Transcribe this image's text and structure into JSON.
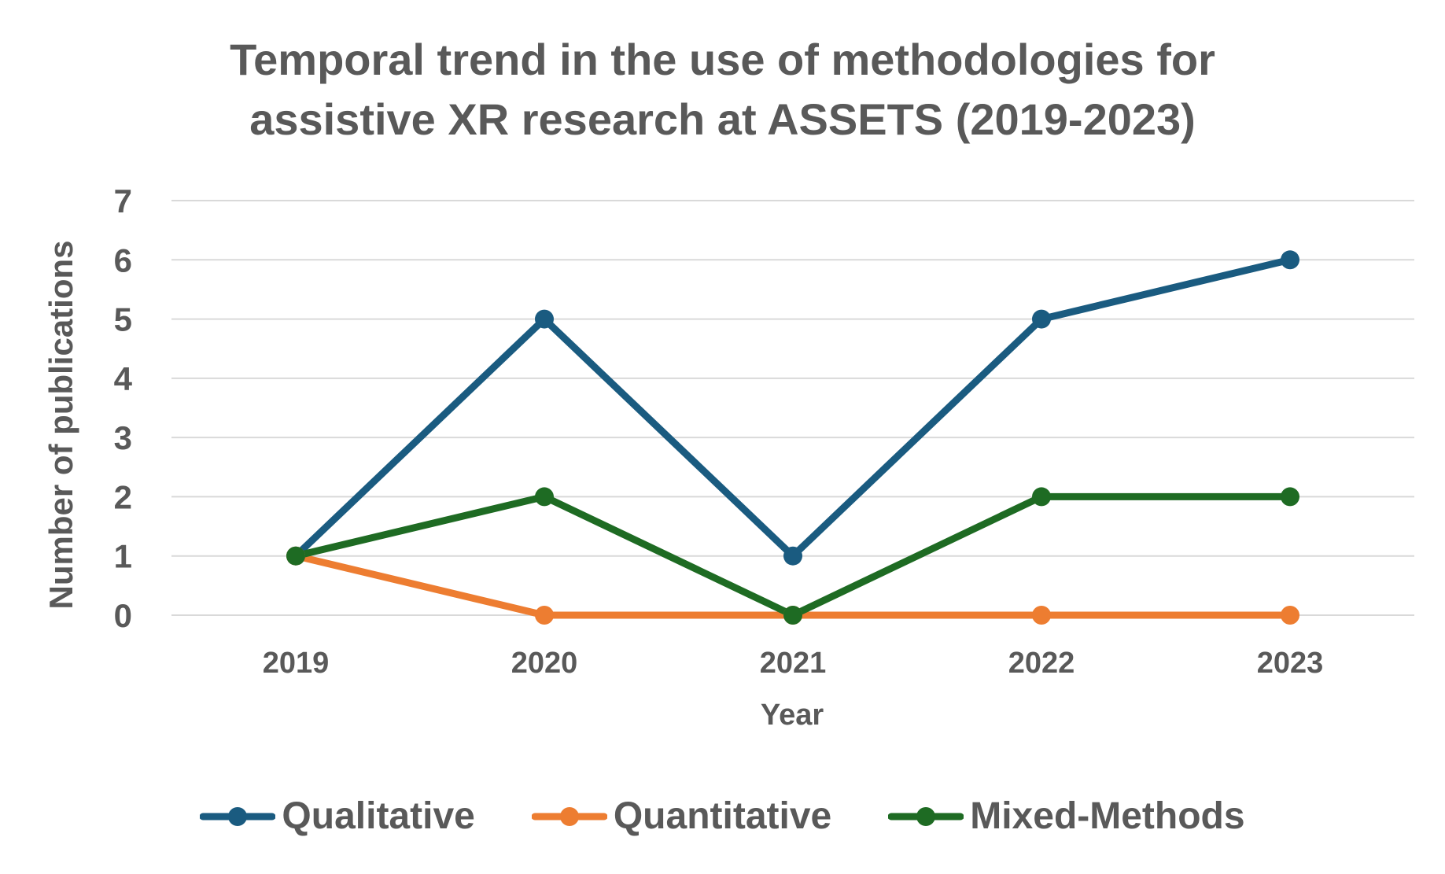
{
  "chart_data": {
    "type": "line",
    "title_lines": [
      "Temporal trend in the use of methodologies for",
      "assistive XR research at ASSETS (2019-2023)"
    ],
    "xlabel": "Year",
    "ylabel": "Number of publications",
    "categories": [
      "2019",
      "2020",
      "2021",
      "2022",
      "2023"
    ],
    "ylim": [
      0,
      7
    ],
    "yticks": [
      0,
      1,
      2,
      3,
      4,
      5,
      6,
      7
    ],
    "grid": true,
    "legend_position": "bottom",
    "series": [
      {
        "name": "Qualitative",
        "color": "#1a5b80",
        "values": [
          1,
          5,
          1,
          5,
          6
        ]
      },
      {
        "name": "Quantitative",
        "color": "#ed7d31",
        "values": [
          1,
          0,
          0,
          0,
          0
        ]
      },
      {
        "name": "Mixed-Methods",
        "color": "#1e6b23",
        "values": [
          1,
          2,
          0,
          2,
          2
        ]
      }
    ]
  }
}
